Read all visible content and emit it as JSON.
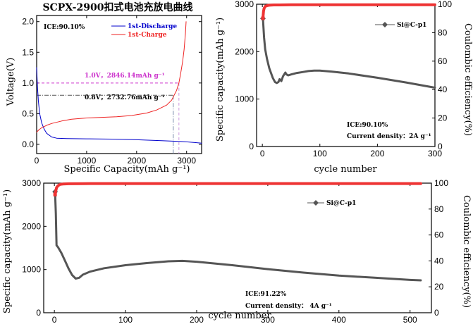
{
  "chart_data": [
    {
      "type": "line",
      "title": "SCPX-2900扣式电池充放电曲线",
      "xlabel": "Specific Capacity(mAh g⁻¹)",
      "ylabel": "Voltage(V)",
      "xlim": [
        0,
        3300
      ],
      "ylim": [
        -0.15,
        2.1
      ],
      "xticks": [
        0,
        1000,
        2000,
        3000
      ],
      "yticks": [
        0.0,
        0.5,
        1.0,
        1.5,
        2.0
      ],
      "xtick_labels": [
        "0",
        "1000",
        "2000",
        "3000"
      ],
      "ytick_labels": [
        "0.0",
        "0.5",
        "1.0",
        "1.5",
        "2.0"
      ],
      "ice_text": "ICE:90.10%",
      "grid": false,
      "legend_position": "top-right",
      "series": [
        {
          "name": "1st-Discharge",
          "color": "#0000cc",
          "x": [
            0,
            15,
            35,
            60,
            100,
            150,
            200,
            300,
            400,
            600,
            1000,
            1500,
            2000,
            2500,
            2800,
            3000,
            3300
          ],
          "y": [
            1.25,
            0.95,
            0.7,
            0.5,
            0.35,
            0.25,
            0.18,
            0.12,
            0.1,
            0.095,
            0.09,
            0.085,
            0.075,
            0.06,
            0.05,
            0.04,
            0.02
          ]
        },
        {
          "name": "1st-Charge",
          "color": "#ee2222",
          "x": [
            0,
            50,
            100,
            200,
            300,
            500,
            700,
            1000,
            1300,
            1600,
            1900,
            2200,
            2400,
            2600,
            2700,
            2750,
            2800,
            2846,
            2880,
            2920,
            2950,
            2975,
            2990
          ],
          "y": [
            0.2,
            0.24,
            0.27,
            0.31,
            0.34,
            0.38,
            0.41,
            0.43,
            0.44,
            0.45,
            0.47,
            0.51,
            0.56,
            0.64,
            0.72,
            0.8,
            0.88,
            1.0,
            1.15,
            1.35,
            1.55,
            1.8,
            2.0
          ]
        }
      ],
      "annotations": [
        {
          "text": "1.0V，2846.14mAh g⁻¹",
          "x": 2846.14,
          "y": 1.0,
          "color": "#cc33cc"
        },
        {
          "text": "0.8V，2732.76mAh g⁻¹",
          "x": 2732.76,
          "y": 0.8,
          "color": "#555555"
        }
      ]
    },
    {
      "type": "line",
      "xlabel": "cycle number",
      "ylabel": "Specific capacity(mAh g⁻¹)",
      "y2label": "Coulombic efficiency(%)",
      "xlim": [
        -10,
        300
      ],
      "ylim": [
        0,
        3000
      ],
      "y2lim": [
        0,
        100
      ],
      "xticks": [
        0,
        100,
        200,
        300
      ],
      "yticks": [
        0,
        1000,
        2000,
        3000
      ],
      "y2ticks": [
        0,
        20,
        40,
        60,
        80,
        100
      ],
      "xtick_labels": [
        "0",
        "100",
        "200",
        "300"
      ],
      "ytick_labels": [
        "0",
        "1000",
        "2000",
        "3000"
      ],
      "y2tick_labels": [
        "0",
        "20",
        "40",
        "60",
        "80",
        "100"
      ],
      "legend_position": "top-right",
      "ice_text": "ICE:90.10%",
      "current_text": "Current density：2A g⁻¹",
      "series": [
        {
          "name": "Si@C-p1",
          "color": "#555555",
          "x": [
            1,
            3,
            5,
            8,
            12,
            18,
            22,
            25,
            28,
            30,
            33,
            36,
            40,
            42,
            45,
            50,
            60,
            70,
            80,
            90,
            100,
            120,
            150,
            200,
            250,
            300
          ],
          "y": [
            2700,
            2300,
            2050,
            1850,
            1650,
            1450,
            1360,
            1340,
            1360,
            1420,
            1380,
            1480,
            1560,
            1520,
            1500,
            1520,
            1550,
            1570,
            1590,
            1600,
            1600,
            1580,
            1540,
            1450,
            1350,
            1240
          ]
        },
        {
          "name": "",
          "axis": "right",
          "color": "#ee3333",
          "x": [
            1,
            2,
            3,
            5,
            8,
            12,
            20,
            30,
            50,
            100,
            150,
            200,
            250,
            300
          ],
          "y": [
            90.1,
            95,
            97,
            98.5,
            99,
            99.3,
            99.5,
            99.5,
            99.6,
            99.6,
            99.6,
            99.6,
            99.6,
            99.6
          ]
        }
      ]
    },
    {
      "type": "line",
      "xlabel": "cycle number",
      "ylabel": "Specific capacity(mAh g⁻¹)",
      "y2label": "Coulombic efficiency(%)",
      "xlim": [
        -15,
        530
      ],
      "ylim": [
        0,
        3000
      ],
      "y2lim": [
        0,
        100
      ],
      "xticks": [
        0,
        100,
        200,
        300,
        400,
        500
      ],
      "yticks": [
        0,
        1000,
        2000,
        3000
      ],
      "y2ticks": [
        0,
        20,
        40,
        60,
        80,
        100
      ],
      "xtick_labels": [
        "0",
        "100",
        "200",
        "300",
        "400",
        "500"
      ],
      "ytick_labels": [
        "0",
        "1000",
        "2000",
        "3000"
      ],
      "y2tick_labels": [
        "0",
        "20",
        "40",
        "60",
        "80",
        "100"
      ],
      "legend_position": "top-right",
      "ice_text": "ICE:91.22%",
      "current_text": "Current density： 4A g⁻¹",
      "series": [
        {
          "name": "Si@C-p1",
          "color": "#555555",
          "x": [
            1,
            2,
            3,
            5,
            10,
            15,
            20,
            25,
            30,
            35,
            40,
            50,
            70,
            100,
            130,
            160,
            180,
            200,
            250,
            300,
            350,
            400,
            450,
            500,
            515
          ],
          "y": [
            2800,
            2300,
            1560,
            1520,
            1380,
            1200,
            1020,
            870,
            790,
            810,
            880,
            950,
            1030,
            1100,
            1150,
            1190,
            1200,
            1180,
            1100,
            1010,
            930,
            860,
            810,
            760,
            750
          ]
        },
        {
          "name": "",
          "axis": "right",
          "color": "#ee3333",
          "x": [
            1,
            2,
            3,
            5,
            8,
            12,
            20,
            40,
            100,
            200,
            300,
            400,
            500,
            515
          ],
          "y": [
            91.2,
            94,
            96.5,
            98,
            99,
            99.3,
            99.5,
            99.6,
            99.7,
            99.7,
            99.7,
            99.7,
            99.7,
            99.7
          ]
        }
      ]
    }
  ]
}
